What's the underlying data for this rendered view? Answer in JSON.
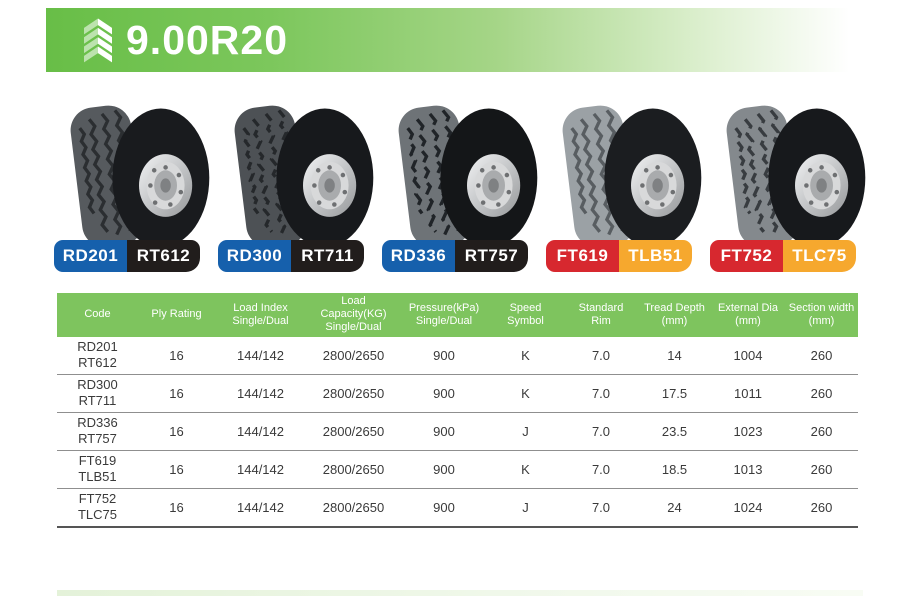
{
  "header": {
    "title": "9.00R20",
    "logo": "chevrons-up-icon"
  },
  "tires": [
    {
      "name_primary": "RD201",
      "name_secondary": "RT612"
    },
    {
      "name_primary": "RD300",
      "name_secondary": "RT711"
    },
    {
      "name_primary": "RD336",
      "name_secondary": "RT757"
    },
    {
      "name_primary": "FT619",
      "name_secondary": "TLB51"
    },
    {
      "name_primary": "FT752",
      "name_secondary": "TLC75"
    }
  ],
  "table": {
    "columns": [
      {
        "l1": "Code",
        "l2": ""
      },
      {
        "l1": "Ply Rating",
        "l2": ""
      },
      {
        "l1": "Load Index",
        "l2": "Single/Dual"
      },
      {
        "l1": "Load Capacity(KG)",
        "l2": "Single/Dual"
      },
      {
        "l1": "Pressure(kPa)",
        "l2": "Single/Dual"
      },
      {
        "l1": "Speed",
        "l2": "Symbol"
      },
      {
        "l1": "Standard",
        "l2": "Rim"
      },
      {
        "l1": "Tread Depth",
        "l2": "(mm)"
      },
      {
        "l1": "External Dia",
        "l2": "(mm)"
      },
      {
        "l1": "Section width",
        "l2": "(mm)"
      }
    ],
    "rows": [
      {
        "code": [
          "RD201",
          "RT612"
        ],
        "cells": [
          "16",
          "144/142",
          "2800/2650",
          "900",
          "K",
          "7.0",
          "14",
          "1004",
          "260"
        ]
      },
      {
        "code": [
          "RD300",
          "RT711"
        ],
        "cells": [
          "16",
          "144/142",
          "2800/2650",
          "900",
          "K",
          "7.0",
          "17.5",
          "1011",
          "260"
        ]
      },
      {
        "code": [
          "RD336",
          "RT757"
        ],
        "cells": [
          "16",
          "144/142",
          "2800/2650",
          "900",
          "J",
          "7.0",
          "23.5",
          "1023",
          "260"
        ]
      },
      {
        "code": [
          "FT619",
          "TLB51"
        ],
        "cells": [
          "16",
          "144/142",
          "2800/2650",
          "900",
          "K",
          "7.0",
          "18.5",
          "1013",
          "260"
        ]
      },
      {
        "code": [
          "FT752",
          "TLC75"
        ],
        "cells": [
          "16",
          "144/142",
          "2800/2650",
          "900",
          "J",
          "7.0",
          "24",
          "1024",
          "260"
        ]
      }
    ]
  },
  "colors": {
    "banner_green": "#68be47",
    "table_header_green": "#7ec45e",
    "badge_blue": "#1660ac",
    "badge_black": "#211d1c",
    "badge_red": "#d7282f",
    "badge_yellow": "#f6a82e"
  }
}
